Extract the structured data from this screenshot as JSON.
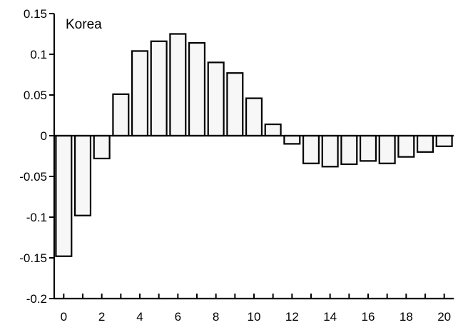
{
  "chart_data": {
    "type": "bar",
    "title": "Korea",
    "xlabel": "",
    "ylabel": "",
    "x": [
      0,
      1,
      2,
      3,
      4,
      5,
      6,
      7,
      8,
      9,
      10,
      11,
      12,
      13,
      14,
      15,
      16,
      17,
      18,
      19,
      20
    ],
    "values": [
      -0.148,
      -0.098,
      -0.028,
      0.051,
      0.104,
      0.116,
      0.125,
      0.114,
      0.09,
      0.077,
      0.046,
      0.014,
      -0.01,
      -0.034,
      -0.038,
      -0.035,
      -0.031,
      -0.034,
      -0.026,
      -0.02,
      -0.013
    ],
    "xticks": [
      "0",
      "2",
      "4",
      "6",
      "8",
      "10",
      "12",
      "14",
      "16",
      "18",
      "20"
    ],
    "yticks": [
      "0.15",
      "0.1",
      "0.05",
      "0",
      "-0.05",
      "-0.1",
      "-0.15",
      "-0.2"
    ],
    "ylim": [
      -0.2,
      0.15
    ],
    "xlim": [
      -0.5,
      20.5
    ],
    "grid": false,
    "legend": "none",
    "colors": {
      "bar_fill": "#f7f7f7",
      "bar_stroke": "#000000",
      "axis": "#000000"
    }
  }
}
